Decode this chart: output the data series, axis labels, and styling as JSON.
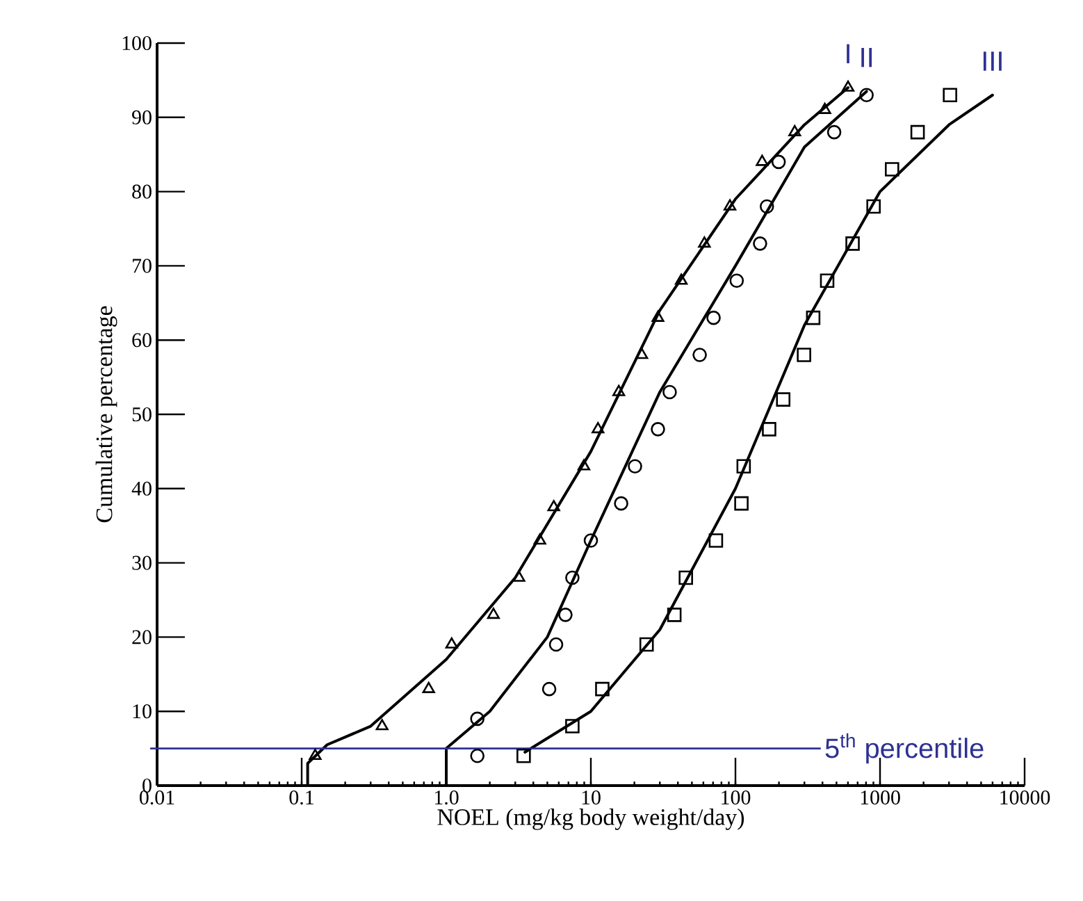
{
  "chart_data": {
    "type": "scatter",
    "xlabel": "NOEL (mg/kg body weight/day)",
    "ylabel": "Cumulative percentage",
    "log": "x",
    "xlim": [
      0.01,
      10000
    ],
    "ylim": [
      0,
      100
    ],
    "xticks": [
      0.01,
      0.1,
      {
        "value": 1,
        "label": "1.0"
      },
      10,
      100,
      1000,
      10000
    ],
    "yticks": [
      0,
      10,
      20,
      30,
      40,
      50,
      60,
      70,
      80,
      90,
      100
    ],
    "series": [
      {
        "marker": "triangle",
        "color": "#000000",
        "x": [
          0.124,
          0.36,
          0.756,
          1.09,
          2.12,
          3.18,
          4.44,
          5.54,
          8.95,
          11.2,
          15.6,
          22.5,
          29.1,
          42.2,
          61,
          91.6,
          153,
          257,
          415,
          601
        ],
        "values": [
          4,
          8,
          13,
          19,
          23,
          28,
          33,
          37.5,
          43,
          48,
          53,
          58,
          63,
          68,
          73,
          78,
          84,
          88,
          91,
          94
        ]
      },
      {
        "marker": "circle",
        "color": "#000000",
        "x": [
          1.64,
          1.64,
          5.15,
          5.75,
          6.67,
          7.45,
          10,
          16.2,
          20.2,
          29.1,
          35.1,
          56.6,
          70.6,
          102,
          148,
          165,
          199,
          482,
          807
        ],
        "values": [
          4,
          9,
          13,
          19,
          23,
          28,
          33,
          38,
          43,
          48,
          53,
          58,
          63,
          68,
          73,
          78,
          84,
          88,
          93
        ]
      },
      {
        "marker": "square",
        "color": "#000000",
        "x": [
          3.43,
          7.45,
          12,
          24.3,
          37.8,
          45.4,
          73.3,
          110,
          114,
          171,
          214,
          298,
          345,
          431,
          646,
          902,
          1211,
          1820,
          3048
        ],
        "values": [
          4,
          8,
          13,
          19,
          23,
          28,
          33,
          38,
          43,
          48,
          52,
          58,
          63,
          68,
          73,
          78,
          83,
          88,
          93
        ]
      },
      {
        "type": "line",
        "name": "I",
        "color": "#000000",
        "x": [
          0.11,
          0.11,
          0.15,
          0.3,
          1,
          3,
          10,
          30,
          100,
          300,
          601
        ],
        "values": [
          0,
          3,
          5.5,
          8,
          17,
          28,
          45,
          64,
          79,
          89,
          94
        ]
      },
      {
        "type": "line",
        "name": "II",
        "color": "#000000",
        "x": [
          1,
          1,
          2,
          5,
          10,
          30,
          100,
          300,
          807
        ],
        "values": [
          0,
          5,
          10,
          20,
          33,
          53,
          70,
          86,
          93.5
        ]
      },
      {
        "type": "line",
        "name": "III",
        "color": "#000000",
        "x": [
          3.5,
          10,
          30,
          100,
          300,
          1000,
          3000,
          6000
        ],
        "values": [
          4.5,
          10,
          21,
          40,
          62,
          80,
          89,
          93
        ]
      }
    ],
    "ref_lines": [
      {
        "axis": "y",
        "value": 5,
        "label": "5$^{th}$ percentile",
        "color": "#2e3192"
      }
    ]
  }
}
